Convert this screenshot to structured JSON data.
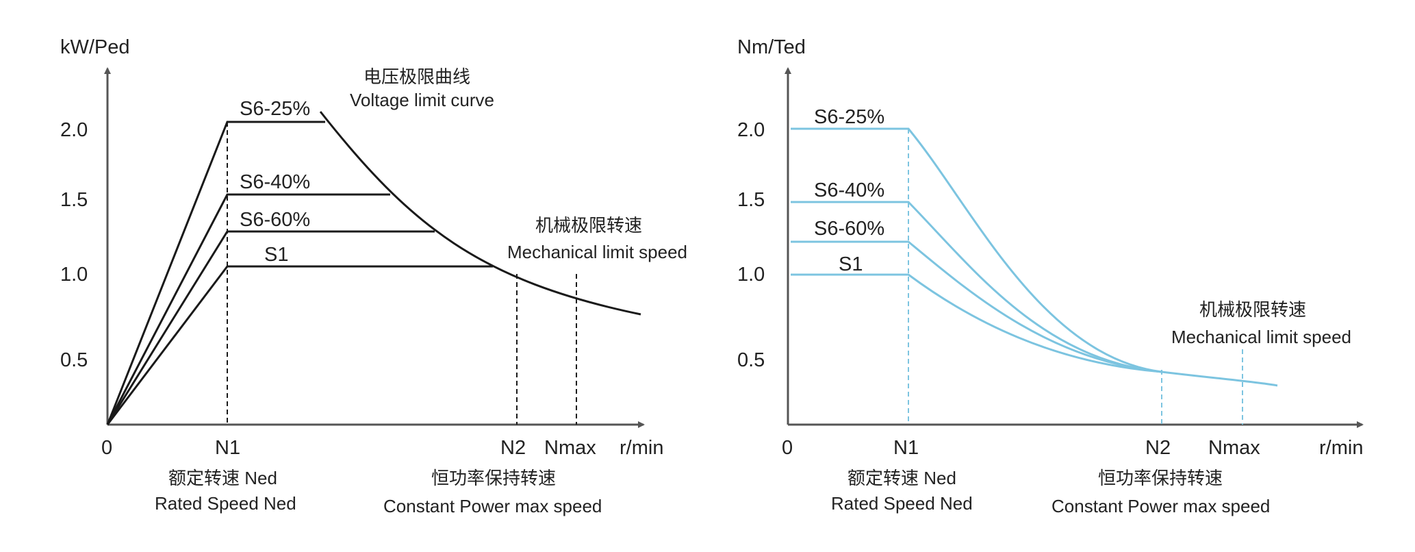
{
  "chart_data": [
    {
      "type": "line",
      "ylabel": "kW/Ped",
      "xlabel": "r/min",
      "x_ticks": [
        "0",
        "N1",
        "N2",
        "Nmax"
      ],
      "y_ticks": [
        "2.0",
        "1.5",
        "1.0",
        "0.5"
      ],
      "series": [
        {
          "name": "S6-25%",
          "plateau": 2.0
        },
        {
          "name": "S6-40%",
          "plateau": 1.5
        },
        {
          "name": "S6-60%",
          "plateau": 1.25
        },
        {
          "name": "S1",
          "plateau": 1.0
        }
      ],
      "annotations": {
        "voltage_limit_cn": "电压极限曲线",
        "voltage_limit_en": "Voltage limit curve",
        "mech_limit_cn": "机械极限转速",
        "mech_limit_en": "Mechanical limit speed",
        "rated_cn": "额定转速  Ned",
        "rated_en": "Rated Speed Ned",
        "const_power_cn": "恒功率保持转速",
        "const_power_en": "Constant Power max speed"
      },
      "color": "#1a1a1a"
    },
    {
      "type": "line",
      "ylabel": "Nm/Ted",
      "xlabel": "r/min",
      "x_ticks": [
        "0",
        "N1",
        "N2",
        "Nmax"
      ],
      "y_ticks": [
        "2.0",
        "1.5",
        "1.0",
        "0.5"
      ],
      "series": [
        {
          "name": "S6-25%",
          "plateau": 2.0
        },
        {
          "name": "S6-40%",
          "plateau": 1.5
        },
        {
          "name": "S6-60%",
          "plateau": 1.25
        },
        {
          "name": "S1",
          "plateau": 1.0
        }
      ],
      "annotations": {
        "mech_limit_cn": "机械极限转速",
        "mech_limit_en": "Mechanical limit speed",
        "rated_cn": "额定转速  Ned",
        "rated_en": "Rated Speed Ned",
        "const_power_cn": "恒功率保持转速",
        "const_power_en": "Constant Power max speed"
      },
      "color": "#7cc4e0"
    }
  ]
}
